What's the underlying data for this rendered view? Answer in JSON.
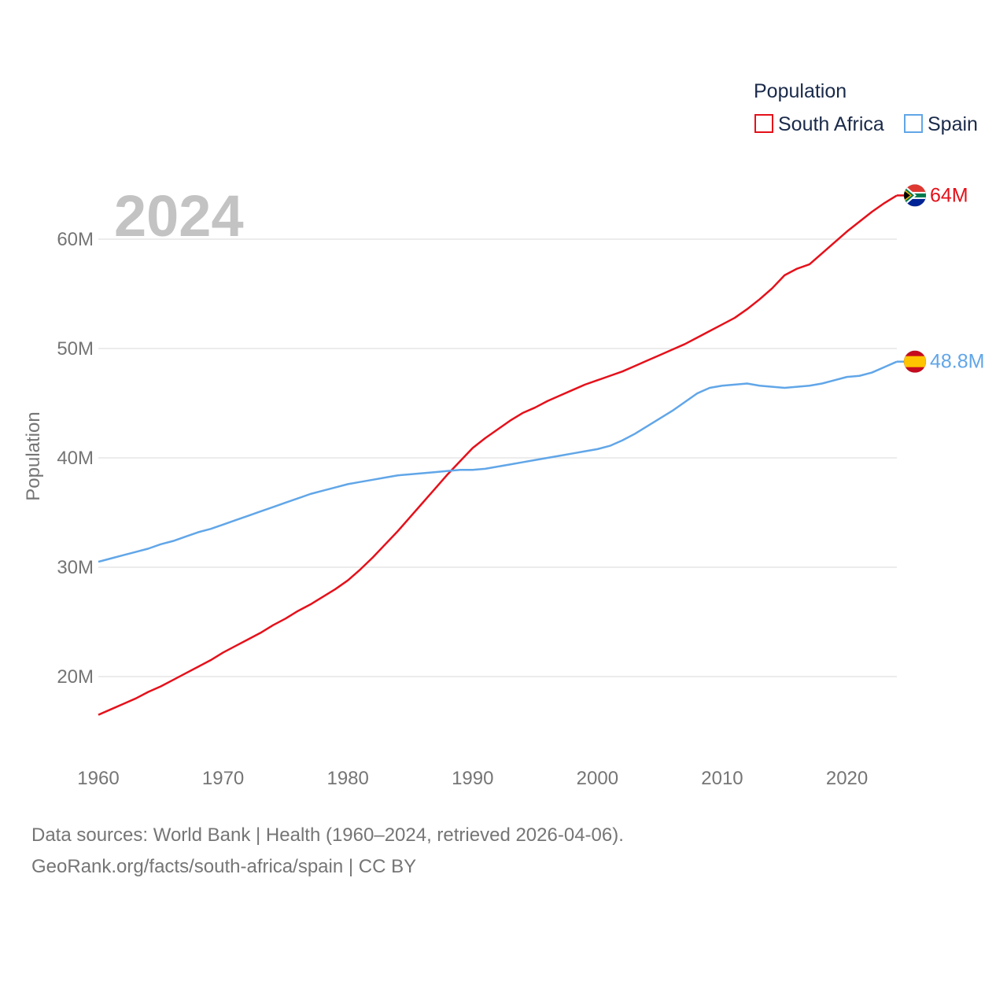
{
  "chart_data": {
    "type": "line",
    "title": "Population",
    "year_label": "2024",
    "ylabel": "Population",
    "xlabel": "",
    "xlim": [
      1960,
      2024
    ],
    "ylim": [
      13,
      67
    ],
    "x_ticks": [
      1960,
      1970,
      1980,
      1990,
      2000,
      2010,
      2020
    ],
    "y_ticks": [
      20,
      30,
      40,
      50,
      60
    ],
    "y_tick_labels": [
      "20M",
      "30M",
      "40M",
      "50M",
      "60M"
    ],
    "unit": "millions",
    "legend_title": "Population",
    "legend_position": "top-right",
    "series": [
      {
        "name": "South Africa",
        "color": "#e5101a",
        "end_label": "64M",
        "flag": "south-africa-flag",
        "x": [
          1960,
          1961,
          1962,
          1963,
          1964,
          1965,
          1966,
          1967,
          1968,
          1969,
          1970,
          1971,
          1972,
          1973,
          1974,
          1975,
          1976,
          1977,
          1978,
          1979,
          1980,
          1981,
          1982,
          1983,
          1984,
          1985,
          1986,
          1987,
          1988,
          1989,
          1990,
          1991,
          1992,
          1993,
          1994,
          1995,
          1996,
          1997,
          1998,
          1999,
          2000,
          2001,
          2002,
          2003,
          2004,
          2005,
          2006,
          2007,
          2008,
          2009,
          2010,
          2011,
          2012,
          2013,
          2014,
          2015,
          2016,
          2017,
          2018,
          2019,
          2020,
          2021,
          2022,
          2023,
          2024
        ],
        "values": [
          16.5,
          17.0,
          17.5,
          18.0,
          18.6,
          19.1,
          19.7,
          20.3,
          20.9,
          21.5,
          22.2,
          22.8,
          23.4,
          24.0,
          24.7,
          25.3,
          26.0,
          26.6,
          27.3,
          28.0,
          28.8,
          29.8,
          30.9,
          32.1,
          33.3,
          34.6,
          35.9,
          37.2,
          38.5,
          39.7,
          40.9,
          41.8,
          42.6,
          43.4,
          44.1,
          44.6,
          45.2,
          45.7,
          46.2,
          46.7,
          47.1,
          47.5,
          47.9,
          48.4,
          48.9,
          49.4,
          49.9,
          50.4,
          51.0,
          51.6,
          52.2,
          52.8,
          53.6,
          54.5,
          55.5,
          56.7,
          57.3,
          57.7,
          58.7,
          59.7,
          60.7,
          61.6,
          62.5,
          63.3,
          64.0
        ]
      },
      {
        "name": "Spain",
        "color": "#61a6e8",
        "end_label": "48.8M",
        "flag": "spain-flag",
        "x": [
          1960,
          1961,
          1962,
          1963,
          1964,
          1965,
          1966,
          1967,
          1968,
          1969,
          1970,
          1971,
          1972,
          1973,
          1974,
          1975,
          1976,
          1977,
          1978,
          1979,
          1980,
          1981,
          1982,
          1983,
          1984,
          1985,
          1986,
          1987,
          1988,
          1989,
          1990,
          1991,
          1992,
          1993,
          1994,
          1995,
          1996,
          1997,
          1998,
          1999,
          2000,
          2001,
          2002,
          2003,
          2004,
          2005,
          2006,
          2007,
          2008,
          2009,
          2010,
          2011,
          2012,
          2013,
          2014,
          2015,
          2016,
          2017,
          2018,
          2019,
          2020,
          2021,
          2022,
          2023,
          2024
        ],
        "values": [
          30.5,
          30.8,
          31.1,
          31.4,
          31.7,
          32.1,
          32.4,
          32.8,
          33.2,
          33.5,
          33.9,
          34.3,
          34.7,
          35.1,
          35.5,
          35.9,
          36.3,
          36.7,
          37.0,
          37.3,
          37.6,
          37.8,
          38.0,
          38.2,
          38.4,
          38.5,
          38.6,
          38.7,
          38.8,
          38.9,
          38.9,
          39.0,
          39.2,
          39.4,
          39.6,
          39.8,
          40.0,
          40.2,
          40.4,
          40.6,
          40.8,
          41.1,
          41.6,
          42.2,
          42.9,
          43.6,
          44.3,
          45.1,
          45.9,
          46.4,
          46.6,
          46.7,
          46.8,
          46.6,
          46.5,
          46.4,
          46.5,
          46.6,
          46.8,
          47.1,
          47.4,
          47.5,
          47.8,
          48.3,
          48.8
        ]
      }
    ]
  },
  "footer": {
    "line1": "Data sources: World Bank | Health (1960–2024, retrieved 2026-04-06).",
    "line2": "GeoRank.org/facts/south-africa/spain | CC BY"
  }
}
